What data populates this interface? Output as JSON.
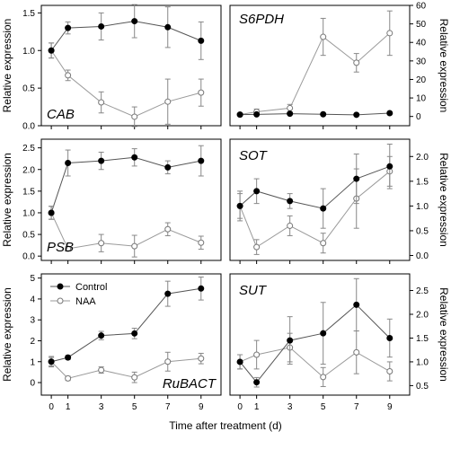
{
  "chart_data": {
    "type": "line",
    "xlabel": "Time after treatment (d)",
    "x": [
      0,
      1,
      3,
      5,
      7,
      9
    ],
    "x_ticks": [
      "0",
      "1",
      "3",
      "5",
      "7",
      "9"
    ],
    "legend": [
      {
        "name": "Control",
        "marker": "filled-circle",
        "color": "#000000"
      },
      {
        "name": "NAA",
        "marker": "open-circle",
        "color": "#999999"
      }
    ],
    "panels": [
      {
        "gene": "CAB",
        "ylabel": "Relative expression",
        "yaxis_side": "left",
        "ylim": [
          0,
          1.6
        ],
        "yticks": [
          "0.0",
          "0.5",
          "1.0",
          "1.5"
        ],
        "ytick_values": [
          0,
          0.5,
          1.0,
          1.5
        ],
        "series": [
          {
            "name": "Control",
            "values": [
              1.0,
              1.3,
              1.32,
              1.39,
              1.31,
              1.13
            ],
            "errors": [
              0.1,
              0.08,
              0.18,
              0.22,
              0.27,
              0.25
            ]
          },
          {
            "name": "NAA",
            "values": [
              1.0,
              0.67,
              0.31,
              0.12,
              0.32,
              0.44
            ],
            "errors": [
              0.1,
              0.07,
              0.14,
              0.13,
              0.3,
              0.18
            ]
          }
        ]
      },
      {
        "gene": "S6PDH",
        "ylabel": "Relative expression",
        "yaxis_side": "right",
        "ylim": [
          -5,
          60
        ],
        "yticks": [
          "0",
          "10",
          "20",
          "30",
          "40",
          "50",
          "60"
        ],
        "ytick_values": [
          0,
          10,
          20,
          30,
          40,
          50,
          60
        ],
        "series": [
          {
            "name": "Control",
            "values": [
              1.0,
              1.1,
              1.5,
              1.2,
              0.9,
              1.8
            ],
            "errors": [
              0.3,
              0.3,
              0.4,
              0.3,
              0.3,
              0.5
            ]
          },
          {
            "name": "NAA",
            "values": [
              1.0,
              2.5,
              4.5,
              43.0,
              29.0,
              45.0
            ],
            "errors": [
              0.5,
              1.5,
              2.0,
              10.0,
              5.0,
              12.0
            ]
          }
        ]
      },
      {
        "gene": "PSB",
        "ylabel": "Relative expression",
        "yaxis_side": "left",
        "ylim": [
          -0.1,
          2.7
        ],
        "yticks": [
          "0.0",
          "0.5",
          "1.0",
          "1.5",
          "2.0",
          "2.5"
        ],
        "ytick_values": [
          0,
          0.5,
          1.0,
          1.5,
          2.0,
          2.5
        ],
        "series": [
          {
            "name": "Control",
            "values": [
              1.0,
              2.15,
              2.2,
              2.28,
              2.05,
              2.2
            ],
            "errors": [
              0.15,
              0.3,
              0.2,
              0.2,
              0.15,
              0.35
            ]
          },
          {
            "name": "NAA",
            "values": [
              1.0,
              0.17,
              0.3,
              0.23,
              0.62,
              0.31
            ],
            "errors": [
              0.15,
              0.05,
              0.2,
              0.25,
              0.15,
              0.15
            ]
          }
        ]
      },
      {
        "gene": "SOT",
        "ylabel": "Relative expression",
        "yaxis_side": "right",
        "ylim": [
          -0.1,
          2.35
        ],
        "yticks": [
          "0.0",
          "0.5",
          "1.0",
          "1.5",
          "2.0"
        ],
        "ytick_values": [
          0,
          0.5,
          1.0,
          1.5,
          2.0
        ],
        "series": [
          {
            "name": "Control",
            "values": [
              1.0,
              1.3,
              1.1,
              0.95,
              1.55,
              1.8
            ],
            "errors": [
              0.25,
              0.25,
              0.15,
              0.4,
              0.5,
              0.45
            ]
          },
          {
            "name": "NAA",
            "values": [
              1.0,
              0.17,
              0.6,
              0.25,
              1.15,
              1.7
            ],
            "errors": [
              0.3,
              0.15,
              0.2,
              0.2,
              0.6,
              0.3
            ]
          }
        ]
      },
      {
        "gene": "RuBACT",
        "ylabel": "Relative expression",
        "yaxis_side": "left",
        "ylim": [
          -0.6,
          5.2
        ],
        "yticks": [
          "0",
          "1",
          "2",
          "3",
          "4",
          "5"
        ],
        "ytick_values": [
          0,
          1,
          2,
          3,
          4,
          5
        ],
        "series": [
          {
            "name": "Control",
            "values": [
              1.0,
              1.2,
              2.25,
              2.35,
              4.25,
              4.5
            ],
            "errors": [
              0.2,
              0.1,
              0.2,
              0.25,
              0.6,
              0.55
            ]
          },
          {
            "name": "NAA",
            "values": [
              1.0,
              0.2,
              0.6,
              0.25,
              1.0,
              1.15
            ],
            "errors": [
              0.25,
              0.1,
              0.15,
              0.25,
              0.45,
              0.25
            ]
          }
        ]
      },
      {
        "gene": "SUT",
        "ylabel": "Relative expression",
        "yaxis_side": "right",
        "ylim": [
          0.3,
          2.85
        ],
        "yticks": [
          "0.5",
          "1.0",
          "1.5",
          "2.0",
          "2.5"
        ],
        "ytick_values": [
          0.5,
          1.0,
          1.5,
          2.0,
          2.5
        ],
        "series": [
          {
            "name": "Control",
            "values": [
              1.0,
              0.57,
              1.45,
              1.6,
              2.2,
              1.5
            ],
            "errors": [
              0.15,
              0.1,
              0.5,
              0.65,
              0.55,
              0.4
            ]
          },
          {
            "name": "NAA",
            "values": [
              1.0,
              1.15,
              1.3,
              0.68,
              1.2,
              0.8
            ],
            "errors": [
              0.15,
              0.3,
              0.3,
              0.2,
              0.45,
              0.2
            ]
          }
        ]
      }
    ]
  }
}
